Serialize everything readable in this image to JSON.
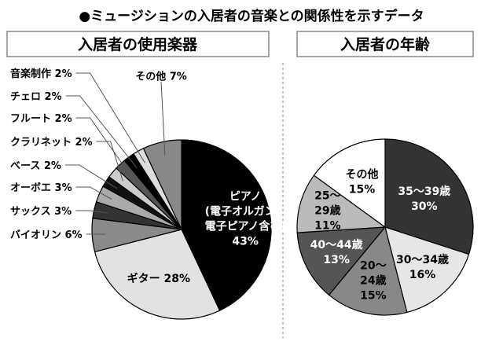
{
  "title": "●ミュージションの入居者の音楽との関係性を示すデータ",
  "chart_data": [
    {
      "type": "pie",
      "title": "入居者の使用楽器",
      "slices": [
        {
          "label": "ピアノ\n(電子オルガン、\n電子ピアノ含む)",
          "value": 43,
          "color": "#000000",
          "text_color": "#ffffff",
          "placement": "inside"
        },
        {
          "label": "ギター",
          "value": 28,
          "color": "#e2e2e2",
          "text_color": "#000000",
          "placement": "inside"
        },
        {
          "label": "バイオリン",
          "value": 6,
          "color": "#8a8a8a",
          "placement": "outside"
        },
        {
          "label": "サックス",
          "value": 3,
          "color": "#333333",
          "placement": "outside"
        },
        {
          "label": "オーボエ",
          "value": 3,
          "color": "#aaaaaa",
          "placement": "outside"
        },
        {
          "label": "ベース",
          "value": 2,
          "color": "#111111",
          "placement": "outside"
        },
        {
          "label": "クラリネット",
          "value": 2,
          "color": "#cccccc",
          "placement": "outside"
        },
        {
          "label": "フルート",
          "value": 2,
          "color": "#555555",
          "placement": "outside"
        },
        {
          "label": "チェロ",
          "value": 2,
          "color": "#000000",
          "placement": "outside"
        },
        {
          "label": "音楽制作",
          "value": 2,
          "color": "#dddddd",
          "placement": "outside"
        },
        {
          "label": "その他",
          "value": 7,
          "color": "#888888",
          "placement": "top"
        }
      ]
    },
    {
      "type": "pie",
      "title": "入居者の年齢",
      "slices": [
        {
          "label": "35〜39歳",
          "value": 30,
          "color": "#333333",
          "text_color": "#ffffff"
        },
        {
          "label": "30〜34歳",
          "value": 16,
          "color": "#e6e6e6",
          "text_color": "#000000"
        },
        {
          "label": "20〜\n24歳",
          "value": 15,
          "color": "#888888",
          "text_color": "#000000"
        },
        {
          "label": "40〜44歳",
          "value": 13,
          "color": "#555555",
          "text_color": "#ffffff"
        },
        {
          "label": "25〜\n29歳",
          "value": 11,
          "color": "#bbbbbb",
          "text_color": "#000000"
        },
        {
          "label": "その他",
          "value": 15,
          "color": "#ffffff",
          "text_color": "#000000"
        }
      ]
    }
  ]
}
